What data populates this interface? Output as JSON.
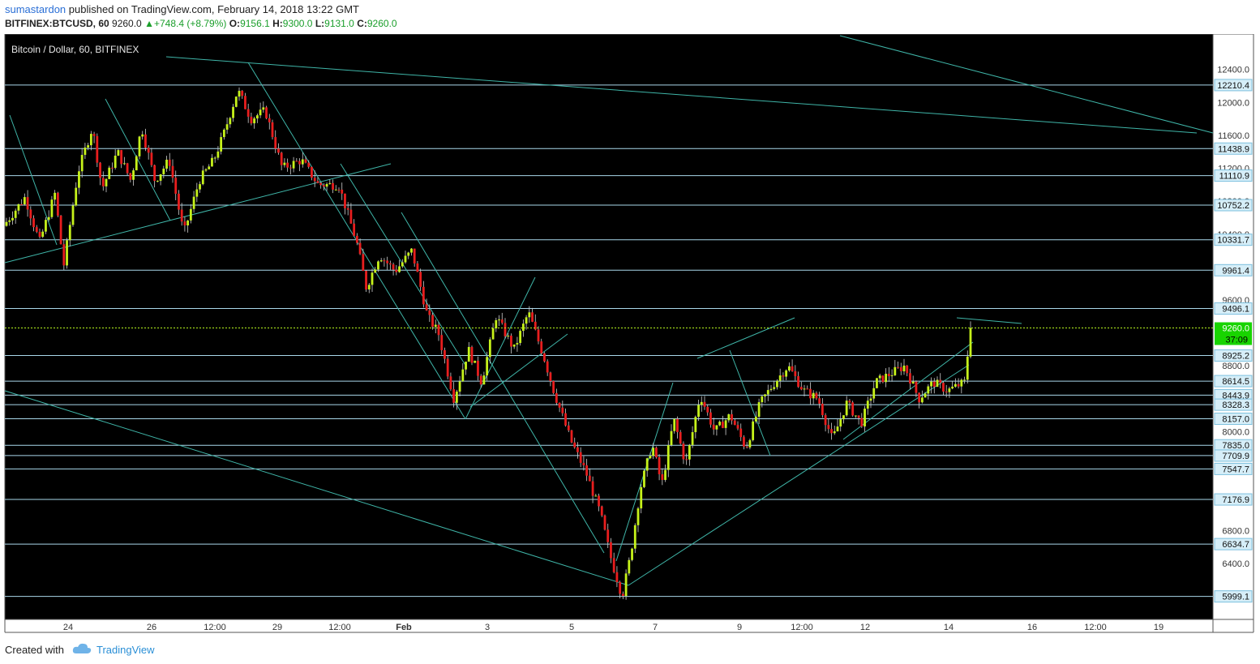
{
  "header": {
    "user": "sumastardon",
    "published": "published on TradingView.com, February 14, 2018 13:22 GMT",
    "symbol": "BITFINEX:BTCUSD, 60",
    "last": "9260.0",
    "change": "+748.4 (+8.79%)",
    "open_label": "O:",
    "open": "9156.1",
    "high_label": "H:",
    "high": "9300.0",
    "low_label": "L:",
    "low": "9131.0",
    "close_label": "C:",
    "close": "9260.0"
  },
  "footer": {
    "created_with": "Created with",
    "brand": "TradingView"
  },
  "chart_data": {
    "type": "candlestick",
    "title": "Bitcoin / Dollar, 60, BITFINEX",
    "ylim": [
      5720,
      12830
    ],
    "y_ticks": [
      12400,
      12000,
      11600,
      11200,
      10800,
      10400,
      9600,
      8800,
      8000,
      6800,
      6400
    ],
    "x_ticks": [
      "24",
      "26",
      "12:00",
      "29",
      "12:00",
      "Feb",
      "3",
      "5",
      "7",
      "9",
      "12:00",
      "12",
      "14",
      "16",
      "12:00",
      "19"
    ],
    "last_price": "9260.0",
    "countdown": "37:09",
    "horizontal_levels": [
      "12210.4",
      "11438.9",
      "11110.9",
      "10752.2",
      "10331.7",
      "9961.4",
      "9496.1",
      "8925.2",
      "8614.5",
      "8443.9",
      "8328.3",
      "8157.0",
      "7835.0",
      "7709.9",
      "7547.7",
      "7176.9",
      "6634.7",
      "5999.1"
    ],
    "path_keypoints": [
      [
        0,
        10500
      ],
      [
        0.018,
        10850
      ],
      [
        0.03,
        10300
      ],
      [
        0.043,
        10900
      ],
      [
        0.05,
        10000
      ],
      [
        0.062,
        11150
      ],
      [
        0.074,
        11700
      ],
      [
        0.082,
        10950
      ],
      [
        0.095,
        11400
      ],
      [
        0.106,
        11050
      ],
      [
        0.115,
        11700
      ],
      [
        0.126,
        11050
      ],
      [
        0.138,
        11300
      ],
      [
        0.15,
        10400
      ],
      [
        0.163,
        11050
      ],
      [
        0.175,
        11300
      ],
      [
        0.183,
        11600
      ],
      [
        0.195,
        12150
      ],
      [
        0.206,
        11800
      ],
      [
        0.218,
        11900
      ],
      [
        0.232,
        11200
      ],
      [
        0.248,
        11300
      ],
      [
        0.262,
        11000
      ],
      [
        0.279,
        11000
      ],
      [
        0.294,
        10300
      ],
      [
        0.302,
        9750
      ],
      [
        0.313,
        10150
      ],
      [
        0.326,
        9950
      ],
      [
        0.34,
        10200
      ],
      [
        0.353,
        9400
      ],
      [
        0.362,
        9200
      ],
      [
        0.375,
        8400
      ],
      [
        0.387,
        9000
      ],
      [
        0.398,
        8600
      ],
      [
        0.41,
        9400
      ],
      [
        0.425,
        9000
      ],
      [
        0.437,
        9450
      ],
      [
        0.45,
        8900
      ],
      [
        0.458,
        8500
      ],
      [
        0.472,
        7900
      ],
      [
        0.485,
        7500
      ],
      [
        0.497,
        7000
      ],
      [
        0.505,
        6500
      ],
      [
        0.515,
        6000
      ],
      [
        0.522,
        6500
      ],
      [
        0.53,
        7300
      ],
      [
        0.54,
        7850
      ],
      [
        0.548,
        7350
      ],
      [
        0.558,
        8150
      ],
      [
        0.568,
        7600
      ],
      [
        0.58,
        8450
      ],
      [
        0.592,
        8000
      ],
      [
        0.605,
        8200
      ],
      [
        0.618,
        7800
      ],
      [
        0.63,
        8350
      ],
      [
        0.642,
        8600
      ],
      [
        0.653,
        8800
      ],
      [
        0.666,
        8500
      ],
      [
        0.678,
        8400
      ],
      [
        0.69,
        7900
      ],
      [
        0.702,
        8350
      ],
      [
        0.714,
        8100
      ],
      [
        0.726,
        8600
      ],
      [
        0.738,
        8700
      ],
      [
        0.75,
        8800
      ],
      [
        0.762,
        8400
      ],
      [
        0.774,
        8600
      ],
      [
        0.786,
        8500
      ],
      [
        0.8,
        8600
      ],
      [
        0.805,
        9260
      ]
    ]
  }
}
